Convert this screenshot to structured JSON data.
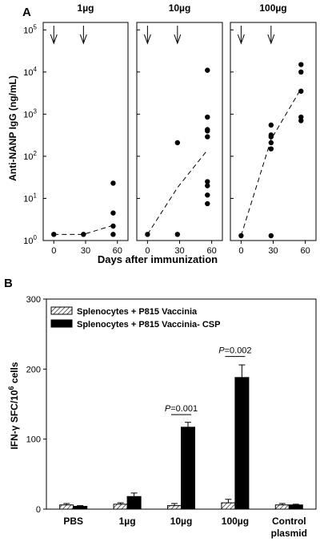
{
  "chart_data": [
    {
      "panel_label": "A",
      "type": "scatter",
      "ylabel": "Anti-NANP IgG (ng/mL)",
      "xlabel": "Days after immunization",
      "yscale": "log",
      "ylim": [
        1,
        150000
      ],
      "xlim": [
        -10,
        70
      ],
      "y_ticks": [
        {
          "value": 1,
          "base": "10",
          "exp": "0"
        },
        {
          "value": 10,
          "base": "10",
          "exp": "1"
        },
        {
          "value": 100,
          "base": "10",
          "exp": "2"
        },
        {
          "value": 1000,
          "base": "10",
          "exp": "3"
        },
        {
          "value": 10000,
          "base": "10",
          "exp": "4"
        },
        {
          "value": 100000,
          "base": "10",
          "exp": "5"
        }
      ],
      "x_ticks": [
        0,
        30,
        60
      ],
      "immunization_days": [
        0,
        28
      ],
      "line_style": "dashed (group mean)",
      "grid": false,
      "subpanels": [
        {
          "title": "1µg",
          "points": [
            [
              0,
              1.4
            ],
            [
              28,
              1.4
            ],
            [
              56,
              1.4
            ],
            [
              56,
              2.2
            ],
            [
              56,
              4.5
            ],
            [
              56,
              23
            ]
          ],
          "mean_line": [
            [
              0,
              1.4
            ],
            [
              28,
              1.4
            ],
            [
              56,
              2.3
            ]
          ]
        },
        {
          "title": "10µg",
          "points": [
            [
              0,
              1.4
            ],
            [
              28,
              1.4
            ],
            [
              28,
              210
            ],
            [
              56,
              7.5
            ],
            [
              56,
              12
            ],
            [
              56,
              20
            ],
            [
              56,
              25
            ],
            [
              56,
              290
            ],
            [
              56,
              400
            ],
            [
              56,
              430
            ],
            [
              56,
              850
            ],
            [
              56,
              11000
            ]
          ],
          "mean_line": [
            [
              0,
              1.4
            ],
            [
              28,
              18
            ],
            [
              56,
              140
            ]
          ]
        },
        {
          "title": "100µg",
          "points": [
            [
              0,
              1.3
            ],
            [
              28,
              1.3
            ],
            [
              28,
              150
            ],
            [
              28,
              210
            ],
            [
              28,
              290
            ],
            [
              28,
              320
            ],
            [
              28,
              550
            ],
            [
              56,
              700
            ],
            [
              56,
              850
            ],
            [
              56,
              3500
            ],
            [
              56,
              10000
            ],
            [
              56,
              15000
            ]
          ],
          "mean_line": [
            [
              0,
              1.3
            ],
            [
              28,
              250
            ],
            [
              56,
              4000
            ]
          ]
        }
      ]
    },
    {
      "panel_label": "B",
      "type": "bar",
      "ylabel_prefix": "IFN-",
      "ylabel_greek": "γ",
      "ylabel_mid": " SFC/10",
      "ylabel_sup": "6",
      "ylabel_suffix": " cells",
      "ylim": [
        0,
        300
      ],
      "y_ticks": [
        0,
        100,
        200,
        300
      ],
      "grid": false,
      "legend_position": "top-left",
      "categories": [
        {
          "line1": "PBS",
          "line2": ""
        },
        {
          "line1": "1µg",
          "line2": ""
        },
        {
          "line1": "10µg",
          "line2": ""
        },
        {
          "line1": "100µg",
          "line2": ""
        },
        {
          "line1": "Control",
          "line2": "plasmid"
        }
      ],
      "series": [
        {
          "name": "Splenocytes + P815 Vaccinia",
          "fill": "hatched",
          "values": [
            6,
            7,
            5,
            9,
            6
          ],
          "errors": [
            2,
            2,
            3,
            5,
            2
          ]
        },
        {
          "name": "Splenocytes + P815 Vaccinia- CSP",
          "fill": "#000000",
          "values": [
            4,
            18,
            117,
            188,
            6
          ],
          "errors": [
            1,
            5,
            7,
            18,
            1
          ]
        }
      ],
      "annotations": [
        {
          "p_italic": "P",
          "p_value": "=0.001",
          "from_category": 2,
          "y": 135
        },
        {
          "p_italic": "P",
          "p_value": "=0.002",
          "from_category": 3,
          "y": 218
        }
      ]
    }
  ]
}
